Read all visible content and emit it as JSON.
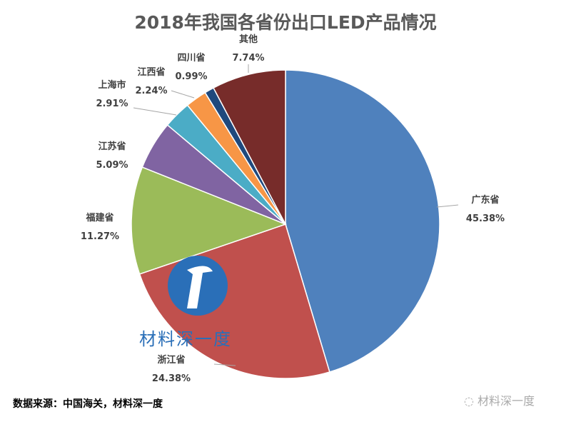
{
  "chart_data": {
    "type": "pie",
    "title": "2018年我国各省份出口LED产品情况",
    "start_angle": "12 o'clock",
    "direction": "clockwise",
    "slices": [
      {
        "label": "广东省",
        "value": 45.38,
        "display": "45.38%",
        "color": "#4F81BD"
      },
      {
        "label": "浙江省",
        "value": 24.38,
        "display": "24.38%",
        "color": "#C0504D"
      },
      {
        "label": "福建省",
        "value": 11.27,
        "display": "11.27%",
        "color": "#9BBB59"
      },
      {
        "label": "江苏省",
        "value": 5.09,
        "display": "5.09%",
        "color": "#8064A2"
      },
      {
        "label": "上海市",
        "value": 2.91,
        "display": "2.91%",
        "color": "#4BACC6"
      },
      {
        "label": "江西省",
        "value": 2.24,
        "display": "2.24%",
        "color": "#F79646"
      },
      {
        "label": "四川省",
        "value": 0.99,
        "display": "0.99%",
        "color": "#1F497D"
      },
      {
        "label": "其他",
        "value": 7.74,
        "display": "7.74%",
        "color": "#772C2A"
      }
    ]
  },
  "source": "数据来源：中国海关，材料深一度",
  "watermark": "材料深一度",
  "watermark_logo_text": "材料深一度"
}
